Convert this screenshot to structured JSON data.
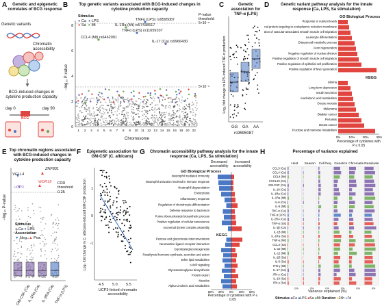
{
  "panels": {
    "A": {
      "letter": "A",
      "title": "Genetic and epigenetic correlates of BCG response",
      "labels": {
        "variants": "Genetic variants",
        "chromatin": "Chromatin accessibility",
        "changes": "BCG-induced changes in cytokine production capacity",
        "day0": "day 0",
        "day90": "day 90",
        "bcg": "BCG"
      }
    },
    "B": {
      "letter": "B",
      "title": "Top genetic variants associated with BCG-induced changes in cytokine production capacity",
      "legend_title": "Stimulus",
      "legend_items": [
        "Ca",
        "LPS",
        "Sa",
        "Mt"
      ],
      "threshold_label": "P-value threshold",
      "thresholds": [
        "5×10⁻⁸",
        "5×10⁻⁶"
      ],
      "ylabel": "−log₁₀ P-value",
      "xlabel": "Chromosome",
      "annotations": [
        "TNFα (LPS) rs9595087",
        "IL-1Ra (Mt) rs57438517",
        "TNFα (LPS) rs11659107",
        "CCL4 (Mt) rs6462091",
        "IL-17 (Ca) rs9966430"
      ],
      "chromosomes": [
        "1",
        "2",
        "3",
        "4",
        "5",
        "6",
        "7",
        "8",
        "9",
        "10",
        "11",
        "12",
        "13",
        "14",
        "15",
        "16",
        "18",
        "20",
        "22"
      ]
    },
    "C": {
      "letter": "C",
      "title": "Genetic association for TNF-α (LPS)",
      "ylabel": "Log₂ fold change in LPS-induced TNF-α production",
      "categories": [
        "GG",
        "GA",
        "AA"
      ],
      "xlabel": "rs9595087"
    },
    "D": {
      "letter": "D",
      "title": "Genetic variant pathway analysis for the innate response (Ca, LPS, Sa stimulation)",
      "go_title": "GO Biological Process",
      "kegg_title": "KEGG",
      "xlabel": "Percentage of cytokines with P ≤ 0.05",
      "ticks": [
        "0%",
        "10%",
        "20%",
        "30%"
      ],
      "go_items": [
        {
          "label": "Response to nutrient levels",
          "value": 7
        },
        {
          "label": "Posttranslational protein targeting to endoplasmic reticulum membrane",
          "value": 8
        },
        {
          "label": "Regulation of vascular-associated smooth muscle cell migration",
          "value": 9
        },
        {
          "label": "Leukocyte differentiation",
          "value": 10
        },
        {
          "label": "Diterpenoid metabolic process",
          "value": 12
        },
        {
          "label": "Axon regeneration",
          "value": 13
        },
        {
          "label": "Negative regulation of nuclear division",
          "value": 14
        },
        {
          "label": "Positive regulation of smooth muscle cell migration",
          "value": 15
        },
        {
          "label": "Positive regulation of epithelial cell proliferation",
          "value": 17
        },
        {
          "label": "Positive regulation of fever generation",
          "value": 28
        }
      ],
      "kegg_items": [
        {
          "label": "Glioma",
          "value": 7
        },
        {
          "label": "Long-term depression",
          "value": 9
        },
        {
          "label": "Insulin secretion",
          "value": 10
        },
        {
          "label": "Arachidonic acid metabolism",
          "value": 11
        },
        {
          "label": "Oocyte meiosis",
          "value": 12
        },
        {
          "label": "Melanoma",
          "value": 13
        },
        {
          "label": "Bladder cancer",
          "value": 15
        },
        {
          "label": "Pertussis",
          "value": 17
        },
        {
          "label": "Breast cancer",
          "value": 19
        },
        {
          "label": "Fructose and mannose metabolism",
          "value": 27
        }
      ]
    },
    "E": {
      "letter": "E",
      "title": "Top chromatin regions associated with BCG-induced changes in cytokine production capacity",
      "genes": [
        "VGLL4",
        "UCP3",
        "ZNF831",
        "WDR18"
      ],
      "threshold_label": "FDR threshold",
      "threshold_value": "0.25",
      "ylabel": "−log₁₀ P-value",
      "legend_stim": "Stimulus",
      "legend_stim_items": [
        "Ca",
        "LPS"
      ],
      "legend_assoc": "Association",
      "legend_assoc_items": [
        "Neg.",
        "Pos."
      ],
      "categories": [
        "GM-CSF (Ca)",
        "IL-1Ra (Ca)",
        "IL-2RA (Ca)",
        "TNF-α (LPS)"
      ]
    },
    "F": {
      "letter": "F",
      "title": "Epigenetic association for GM-CSF (C. albicans)",
      "ylabel": "Log₂ fold change in C. albicans-induced GM-CSF production",
      "xlabel": "UCP3-linked chromatin accessibility",
      "xticks": [
        "4.5",
        "5.0",
        "5.5"
      ]
    },
    "G": {
      "letter": "G",
      "title": "Chromatin accessibility pathway analysis for the innate response (Ca, LPS, Sa stimulation)",
      "col_neg": "Decreased accessibility",
      "col_pos": "Increased accessibility",
      "go_title": "GO Biological Process",
      "kegg_title": "KEGG",
      "xlabel": "Percentage of cytokines with P ≤ 0.05",
      "ticks": [
        "60%",
        "30%",
        "0%",
        "30%",
        "60%"
      ],
      "go_items": [
        {
          "label": "Neutrophil mediated immunity",
          "neg": 40,
          "pos": 8
        },
        {
          "label": "Neutrophil activation involved in immune response",
          "neg": 38,
          "pos": 6
        },
        {
          "label": "Neutrophil degranulation",
          "neg": 36,
          "pos": 6
        },
        {
          "label": "Endocytosis",
          "neg": 30,
          "pos": 10
        },
        {
          "label": "Inflammatory response",
          "neg": 20,
          "pos": 12
        },
        {
          "label": "Regulation of chondrocyte differentiation",
          "neg": 15,
          "pos": 18
        },
        {
          "label": "Defense response to bacterium",
          "neg": 25,
          "pos": 10
        },
        {
          "label": "Purine ribonucleoside biosynthetic process",
          "neg": 22,
          "pos": 12
        },
        {
          "label": "Positive regulation of cellular senescence",
          "neg": 28,
          "pos": 14
        },
        {
          "label": "Axonemal dynein complex assembly",
          "neg": 10,
          "pos": 30
        }
      ],
      "kegg_items": [
        {
          "label": "Pentose and glucuronate interconversions",
          "neg": 15,
          "pos": 32
        },
        {
          "label": "Neuroactive ligand–receptor interaction",
          "neg": 18,
          "pos": 24
        },
        {
          "label": "Glycolysis/gluconeogenesis",
          "neg": 30,
          "pos": 12
        },
        {
          "label": "Parathyroid hormone synthesis, secretion and action",
          "neg": 24,
          "pos": 16
        },
        {
          "label": "Ether lipid metabolism",
          "neg": 26,
          "pos": 14
        },
        {
          "label": "cAMP signaling",
          "neg": 20,
          "pos": 18
        },
        {
          "label": "Glycosaminoglycan biosynthesis",
          "neg": 28,
          "pos": 12
        },
        {
          "label": "Protein export",
          "neg": 22,
          "pos": 20
        },
        {
          "label": "Measles",
          "neg": 30,
          "pos": 14
        },
        {
          "label": "Alpha-Linolenic acid metabolism",
          "neg": 26,
          "pos": 16
        }
      ]
    },
    "H": {
      "letter": "H",
      "title": "Percentage of variance explained",
      "columns": [
        "Host",
        "Season",
        "Cell freq.",
        "Genetics",
        "Chromatin",
        "Residuals"
      ],
      "rows": [
        "CCL3 (Ca)",
        "CCL4 (Ca)",
        "CCL4 (Mt)",
        "CXCL10 (Ca)",
        "GM-CSF (Ca)",
        "IL-10 (Ca)",
        "IL-1Ra (Ca)",
        "IL-1Ra (Mt)",
        "IL-6 (Ca)",
        "IL-6 (Mt)",
        "TNF-α (Ca)",
        "TNF-α (LPS)",
        "IL-2RA (Ca)",
        "TNF-α (Sa)",
        "IL-1β (Ca)",
        "IL-1β (Mt)",
        "IL-1Ra (Sa)",
        "TNF-α (Mt)",
        "CCL4 (Sa)",
        "IL-10 (Mt)",
        "IL-12 (Mt)",
        "IL-1β (Sa)",
        "IL-6 (Sa)",
        "IFN-γ (Mt)",
        "IL-17 (Ca)",
        "IFN-γ (Ca)",
        "IL-10 (Sa)",
        "IFN-γ (Sa)"
      ],
      "xlabel": "Variance explained (%)",
      "legend_stim": "Stimulus",
      "legend_stim_items": [
        "Ca",
        "LPS",
        "Sa",
        "Mt"
      ],
      "legend_dur": "Duration",
      "legend_dur_items": [
        "24h",
        "7d"
      ]
    }
  },
  "colors": {
    "Ca": "#7b5ea7",
    "LPS": "#4a78c4",
    "Sa": "#e0463f",
    "Mt": "#6aa84f",
    "red": "#e0463f",
    "blue": "#4a78c4",
    "purple": "#8e6cc0",
    "d24": "#f2d25a",
    "d7": "#8cc0e0"
  }
}
